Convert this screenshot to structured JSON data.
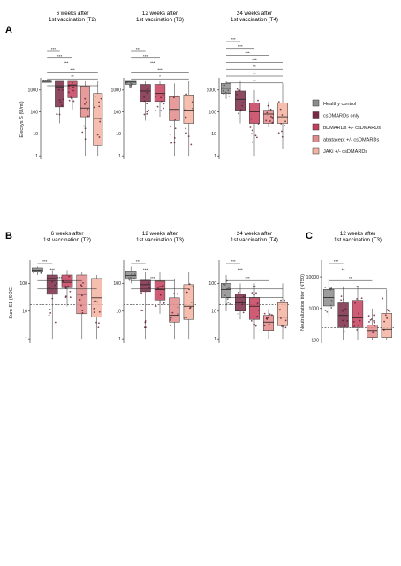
{
  "panel_labels": [
    "A",
    "B",
    "C"
  ],
  "legend": [
    {
      "label": "Healthy control",
      "color": "#8c8c8c"
    },
    {
      "label": "csDMARDs only",
      "color": "#7a2a45"
    },
    {
      "label": "bDMARDs +/- csDMARDs",
      "color": "#c43f5c"
    },
    {
      "label": "abatacept +/- csDMARDs",
      "color": "#e38a8a"
    },
    {
      "label": "JAKi +/- csDMARDs",
      "color": "#f4b3a1"
    }
  ],
  "chart_data": [
    {
      "type": "box",
      "panel": "A",
      "title": [
        "6 weeks after",
        "1st vaccination (T2)"
      ],
      "ylabel": "Elecsys S (U/ml)",
      "yscale": "log",
      "ylim": [
        0.7,
        3000
      ],
      "yticks": [
        "1",
        "10",
        "100",
        "1000"
      ],
      "groups": [
        {
          "name": "Healthy control",
          "min": 2500,
          "q1": 2500,
          "median": 2500,
          "q3": 2500,
          "max": 2500
        },
        {
          "name": "csDMARDs only",
          "min": 30,
          "q1": 170,
          "median": 1400,
          "q3": 2500,
          "max": 2500
        },
        {
          "name": "bDMARDs +/- csDMARDs",
          "min": 130,
          "q1": 450,
          "median": 1700,
          "q3": 2500,
          "max": 2500
        },
        {
          "name": "abatacept +/- csDMARDs",
          "min": 1,
          "q1": 60,
          "median": 150,
          "q3": 1500,
          "max": 2500
        },
        {
          "name": "JAKi +/- csDMARDs",
          "min": 1,
          "q1": 3,
          "median": 50,
          "q3": 700,
          "max": 2500
        }
      ],
      "significance": [
        "***",
        "***",
        "***",
        "***",
        "**",
        "*"
      ]
    },
    {
      "type": "box",
      "panel": "A",
      "title": [
        "12 weeks after",
        "1st vaccination (T3)"
      ],
      "yscale": "log",
      "ylim": [
        0.7,
        3000
      ],
      "yticks": [
        "1",
        "10",
        "100",
        "1000"
      ],
      "groups": [
        {
          "name": "Healthy control",
          "min": 1200,
          "q1": 1800,
          "median": 2300,
          "q3": 2500,
          "max": 2500
        },
        {
          "name": "csDMARDs only",
          "min": 40,
          "q1": 300,
          "median": 900,
          "q3": 1800,
          "max": 2500
        },
        {
          "name": "bDMARDs +/- csDMARDs",
          "min": 60,
          "q1": 300,
          "median": 700,
          "q3": 1800,
          "max": 2500
        },
        {
          "name": "abatacept +/- csDMARDs",
          "min": 1,
          "q1": 40,
          "median": 130,
          "q3": 500,
          "max": 2000
        },
        {
          "name": "JAKi +/- csDMARDs",
          "min": 1,
          "q1": 30,
          "median": 120,
          "q3": 600,
          "max": 2500
        }
      ],
      "significance": [
        "***",
        "***",
        "***",
        "***",
        "*"
      ]
    },
    {
      "type": "box",
      "panel": "A",
      "title": [
        "24 weeks after",
        "1st vaccination (T4)"
      ],
      "yscale": "log",
      "ylim": [
        0.7,
        3000
      ],
      "yticks": [
        "1",
        "10",
        "100",
        "1000"
      ],
      "groups": [
        {
          "name": "Healthy control",
          "min": 400,
          "q1": 700,
          "median": 1200,
          "q3": 2000,
          "max": 2500
        },
        {
          "name": "csDMARDs only",
          "min": 30,
          "q1": 120,
          "median": 380,
          "q3": 900,
          "max": 2500
        },
        {
          "name": "bDMARDs +/- csDMARDs",
          "min": 1,
          "q1": 30,
          "median": 100,
          "q3": 250,
          "max": 1000
        },
        {
          "name": "abatacept +/- csDMARDs",
          "min": 20,
          "q1": 30,
          "median": 80,
          "q3": 120,
          "max": 300
        },
        {
          "name": "JAKi +/- csDMARDs",
          "min": 2,
          "q1": 30,
          "median": 60,
          "q3": 250,
          "max": 2000
        }
      ],
      "significance": [
        "***",
        "***",
        "***",
        "***",
        "**",
        "**",
        "**"
      ]
    },
    {
      "type": "box",
      "panel": "B",
      "title": [
        "6 weeks after",
        "1st vaccination (T2)"
      ],
      "ylabel": "Sum S1 (SOC)",
      "yscale": "log",
      "ylim": [
        0.7,
        600
      ],
      "yticks": [
        "1",
        "10",
        "100"
      ],
      "reference_line": 17,
      "groups": [
        {
          "name": "Healthy control",
          "min": 200,
          "q1": 270,
          "median": 300,
          "q3": 360,
          "max": 400
        },
        {
          "name": "csDMARDs only",
          "min": 1,
          "q1": 40,
          "median": 150,
          "q3": 200,
          "max": 300
        },
        {
          "name": "bDMARDs +/- csDMARDs",
          "min": 15,
          "q1": 70,
          "median": 110,
          "q3": 200,
          "max": 300
        },
        {
          "name": "abatacept +/- csDMARDs",
          "min": 1,
          "q1": 8,
          "median": 40,
          "q3": 200,
          "max": 250
        },
        {
          "name": "JAKi +/- csDMARDs",
          "min": 1,
          "q1": 6,
          "median": 30,
          "q3": 150,
          "max": 200
        }
      ],
      "significance": [
        "***",
        "***",
        "***",
        "***"
      ]
    },
    {
      "type": "box",
      "panel": "B",
      "title": [
        "12 weeks after",
        "1st vaccination (T3)"
      ],
      "yscale": "log",
      "ylim": [
        0.7,
        600
      ],
      "yticks": [
        "1",
        "10",
        "100"
      ],
      "reference_line": 17,
      "groups": [
        {
          "name": "Healthy control",
          "min": 100,
          "q1": 140,
          "median": 190,
          "q3": 280,
          "max": 400
        },
        {
          "name": "csDMARDs only",
          "min": 1,
          "q1": 50,
          "median": 90,
          "q3": 130,
          "max": 250
        },
        {
          "name": "bDMARDs +/- csDMARDs",
          "min": 8,
          "q1": 25,
          "median": 60,
          "q3": 120,
          "max": 250
        },
        {
          "name": "abatacept +/- csDMARDs",
          "min": 1,
          "q1": 4,
          "median": 7,
          "q3": 30,
          "max": 150
        },
        {
          "name": "JAKi +/- csDMARDs",
          "min": 1,
          "q1": 5,
          "median": 15,
          "q3": 90,
          "max": 250
        }
      ],
      "significance": [
        "***",
        "***",
        "***",
        "*"
      ]
    },
    {
      "type": "box",
      "panel": "B",
      "title": [
        "24 weeks after",
        "1st vaccination (T4)"
      ],
      "yscale": "log",
      "ylim": [
        0.7,
        600
      ],
      "yticks": [
        "1",
        "10",
        "100"
      ],
      "reference_line": 17,
      "groups": [
        {
          "name": "Healthy control",
          "min": 10,
          "q1": 30,
          "median": 60,
          "q3": 100,
          "max": 200
        },
        {
          "name": "csDMARDs only",
          "min": 5,
          "q1": 10,
          "median": 20,
          "q3": 40,
          "max": 100
        },
        {
          "name": "bDMARDs +/- csDMARDs",
          "min": 1,
          "q1": 5,
          "median": 15,
          "q3": 30,
          "max": 100
        },
        {
          "name": "abatacept +/- csDMARDs",
          "min": 1,
          "q1": 2,
          "median": 4,
          "q3": 7,
          "max": 12
        },
        {
          "name": "JAKi +/- csDMARDs",
          "min": 1,
          "q1": 3,
          "median": 6,
          "q3": 20,
          "max": 100
        }
      ],
      "significance": [
        "***",
        "***",
        "***",
        "**",
        "*"
      ]
    },
    {
      "type": "box",
      "panel": "C",
      "title": [
        "12 weeks after",
        "1st vaccination (T3)"
      ],
      "ylabel": "Neutralization titer (NT50)",
      "yscale": "log",
      "ylim": [
        80,
        30000
      ],
      "yticks": [
        "100",
        "1000",
        "10000"
      ],
      "reference_line": 250,
      "groups": [
        {
          "name": "Healthy control",
          "min": 500,
          "q1": 1200,
          "median": 2200,
          "q3": 4000,
          "max": 8000
        },
        {
          "name": "csDMARDs only",
          "min": 100,
          "q1": 250,
          "median": 600,
          "q3": 1500,
          "max": 5000
        },
        {
          "name": "bDMARDs +/- csDMARDs",
          "min": 100,
          "q1": 250,
          "median": 500,
          "q3": 1800,
          "max": 5000
        },
        {
          "name": "abatacept +/- csDMARDs",
          "min": 100,
          "q1": 120,
          "median": 200,
          "q3": 300,
          "max": 1000
        },
        {
          "name": "JAKi +/- csDMARDs",
          "min": 100,
          "q1": 120,
          "median": 220,
          "q3": 700,
          "max": 4000
        }
      ],
      "significance": [
        "***",
        "**",
        "**",
        "**"
      ]
    }
  ]
}
